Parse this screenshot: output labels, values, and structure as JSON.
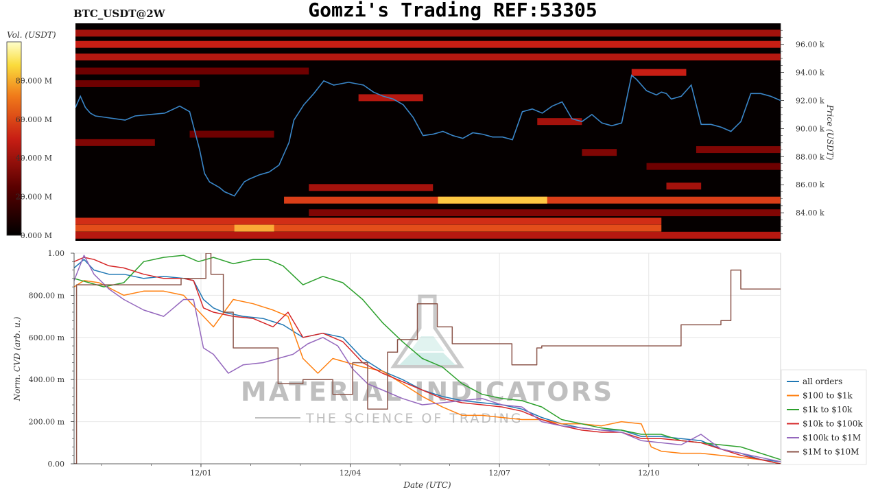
{
  "title": "Gomzi's Trading REF:53305",
  "pair_label": "BTC_USDT@2W",
  "watermark": {
    "main": "MATERIAL INDICATORS",
    "sub": "THE SCIENCE OF TRADING"
  },
  "colors": {
    "heat_low": "#000000",
    "heat_mid": "#c81e14",
    "heat_high": "#ffff99",
    "price_line": "#3a86c8",
    "grid": "#e6e6e6"
  },
  "chart_data": [
    {
      "type": "heatmap",
      "name": "orderbook-liquidity",
      "colorbar_label": "Vol. (USDT)",
      "colorbar_ticks": [
        "0.000 M",
        "20.000 M",
        "40.000 M",
        "60.000 M",
        "80.000 M"
      ],
      "colorbar_range": [
        0,
        100
      ],
      "y_label": "Price (USDT)",
      "y_ticks": [
        "84.00 k",
        "86.00 k",
        "88.00 k",
        "90.00 k",
        "92.00 k",
        "94.00 k",
        "96.00 k"
      ],
      "y_tick_values": [
        84,
        86,
        88,
        90,
        92,
        94,
        96
      ],
      "ylim": [
        82,
        97.5
      ],
      "xlim": [
        0,
        14.2
      ],
      "bands": [
        {
          "price": 96.8,
          "start": 0,
          "end": 14.2,
          "intensity": 0.45
        },
        {
          "price": 96.0,
          "start": 0,
          "end": 14.2,
          "intensity": 0.55
        },
        {
          "price": 95.1,
          "start": 0,
          "end": 14.2,
          "intensity": 0.5
        },
        {
          "price": 94.1,
          "start": 0,
          "end": 4.7,
          "intensity": 0.3
        },
        {
          "price": 93.2,
          "start": 0,
          "end": 2.5,
          "intensity": 0.3
        },
        {
          "price": 89.0,
          "start": 0,
          "end": 1.6,
          "intensity": 0.35
        },
        {
          "price": 85.8,
          "start": 4.7,
          "end": 7.2,
          "intensity": 0.45
        },
        {
          "price": 85.9,
          "start": 11.9,
          "end": 12.6,
          "intensity": 0.45
        },
        {
          "price": 84.9,
          "start": 4.2,
          "end": 14.2,
          "intensity": 0.65
        },
        {
          "price": 84.9,
          "start": 7.3,
          "end": 9.5,
          "intensity": 0.95
        },
        {
          "price": 84.0,
          "start": 4.7,
          "end": 14.2,
          "intensity": 0.35
        },
        {
          "price": 83.4,
          "start": 0,
          "end": 11.8,
          "intensity": 0.6
        },
        {
          "price": 82.9,
          "start": 0,
          "end": 11.8,
          "intensity": 0.7
        },
        {
          "price": 82.9,
          "start": 3.2,
          "end": 4.0,
          "intensity": 0.9
        },
        {
          "price": 82.4,
          "start": 0,
          "end": 14.2,
          "intensity": 0.5
        },
        {
          "price": 92.2,
          "start": 5.7,
          "end": 7.0,
          "intensity": 0.5
        },
        {
          "price": 90.5,
          "start": 9.3,
          "end": 10.2,
          "intensity": 0.45
        },
        {
          "price": 89.6,
          "start": 2.3,
          "end": 4.0,
          "intensity": 0.3
        },
        {
          "price": 88.3,
          "start": 10.2,
          "end": 10.9,
          "intensity": 0.35
        },
        {
          "price": 88.5,
          "start": 12.5,
          "end": 14.2,
          "intensity": 0.35
        },
        {
          "price": 87.3,
          "start": 11.5,
          "end": 14.2,
          "intensity": 0.3
        },
        {
          "price": 94.0,
          "start": 11.2,
          "end": 12.3,
          "intensity": 0.55
        }
      ],
      "price": {
        "x": [
          0,
          0.1,
          0.2,
          0.3,
          0.4,
          0.6,
          0.8,
          1.0,
          1.2,
          1.5,
          1.8,
          2.1,
          2.3,
          2.5,
          2.6,
          2.7,
          2.8,
          2.9,
          3.0,
          3.2,
          3.4,
          3.5,
          3.7,
          3.9,
          4.1,
          4.3,
          4.4,
          4.6,
          4.8,
          5.0,
          5.2,
          5.5,
          5.8,
          6.0,
          6.2,
          6.4,
          6.6,
          6.8,
          7.0,
          7.2,
          7.4,
          7.6,
          7.8,
          8.0,
          8.2,
          8.4,
          8.6,
          8.8,
          9.0,
          9.2,
          9.4,
          9.6,
          9.8,
          10.0,
          10.2,
          10.4,
          10.6,
          10.8,
          11.0,
          11.2,
          11.3,
          11.5,
          11.7,
          11.8,
          11.9,
          12.0,
          12.2,
          12.4,
          12.6,
          12.8,
          13.0,
          13.2,
          13.4,
          13.6,
          13.8,
          14.0,
          14.2
        ],
        "y": [
          91.5,
          92.3,
          91.5,
          91.1,
          90.9,
          90.8,
          90.7,
          90.6,
          90.9,
          91.0,
          91.1,
          91.6,
          91.2,
          88.5,
          86.8,
          86.2,
          86.0,
          85.8,
          85.5,
          85.2,
          86.2,
          86.4,
          86.7,
          86.9,
          87.4,
          89.0,
          90.6,
          91.7,
          92.5,
          93.4,
          93.1,
          93.3,
          93.1,
          92.6,
          92.3,
          92.1,
          91.7,
          90.8,
          89.5,
          89.6,
          89.8,
          89.5,
          89.3,
          89.7,
          89.6,
          89.4,
          89.4,
          89.2,
          91.2,
          91.4,
          91.1,
          91.6,
          91.9,
          90.7,
          90.5,
          91.0,
          90.4,
          90.2,
          90.4,
          93.8,
          93.5,
          92.7,
          92.4,
          92.6,
          92.5,
          92.1,
          92.3,
          93.1,
          90.3,
          90.3,
          90.1,
          89.8,
          90.5,
          92.5,
          92.5,
          92.3,
          92.0
        ]
      }
    },
    {
      "type": "line",
      "name": "normalized-cvd",
      "ylabel": "Norm. CVD (arb. u.)",
      "xlabel": "Date (UTC)",
      "ylim": [
        0,
        1
      ],
      "xlim": [
        0,
        14.2
      ],
      "y_ticks": [
        "0.00",
        "200.00 m",
        "400.00 m",
        "600.00 m",
        "800.00 m",
        "1.00"
      ],
      "y_tick_values": [
        0,
        0.2,
        0.4,
        0.6,
        0.8,
        1.0
      ],
      "x_ticks": [
        "12/01",
        "12/04",
        "12/07",
        "12/10"
      ],
      "x_tick_values": [
        2.55,
        5.55,
        8.55,
        11.55
      ],
      "series": [
        {
          "name": "all orders",
          "color": "#1f77b4",
          "x": [
            0,
            0.2,
            0.4,
            0.7,
            1.0,
            1.4,
            1.8,
            2.2,
            2.4,
            2.6,
            2.8,
            3.0,
            3.4,
            3.8,
            4.2,
            4.6,
            5.0,
            5.4,
            5.8,
            6.2,
            6.6,
            7.0,
            7.4,
            7.8,
            8.2,
            8.6,
            9.0,
            9.4,
            9.8,
            10.2,
            10.6,
            11.0,
            11.4,
            11.8,
            12.2,
            12.6,
            13.0,
            13.4,
            13.8,
            14.2
          ],
          "y": [
            0.93,
            0.97,
            0.92,
            0.9,
            0.9,
            0.88,
            0.89,
            0.88,
            0.87,
            0.78,
            0.74,
            0.72,
            0.7,
            0.69,
            0.66,
            0.6,
            0.62,
            0.6,
            0.5,
            0.44,
            0.4,
            0.35,
            0.32,
            0.3,
            0.29,
            0.28,
            0.26,
            0.22,
            0.19,
            0.17,
            0.16,
            0.16,
            0.13,
            0.13,
            0.12,
            0.11,
            0.07,
            0.05,
            0.02,
            0.01
          ]
        },
        {
          "name": "$100 to $1k",
          "color": "#ff7f0e",
          "x": [
            0,
            0.2,
            0.5,
            1.0,
            1.4,
            1.8,
            2.2,
            2.6,
            2.8,
            3.2,
            3.6,
            4.0,
            4.3,
            4.6,
            4.9,
            5.2,
            5.5,
            5.8,
            6.2,
            6.6,
            7.0,
            7.4,
            7.8,
            8.2,
            8.6,
            9.0,
            9.4,
            9.8,
            10.2,
            10.6,
            11.0,
            11.4,
            11.6,
            11.8,
            12.2,
            12.6,
            13.0,
            13.4,
            13.8,
            14.2
          ],
          "y": [
            0.84,
            0.87,
            0.86,
            0.8,
            0.82,
            0.82,
            0.8,
            0.7,
            0.65,
            0.78,
            0.76,
            0.73,
            0.7,
            0.5,
            0.43,
            0.5,
            0.48,
            0.46,
            0.44,
            0.38,
            0.32,
            0.27,
            0.23,
            0.23,
            0.22,
            0.21,
            0.21,
            0.19,
            0.19,
            0.18,
            0.2,
            0.19,
            0.08,
            0.06,
            0.05,
            0.05,
            0.04,
            0.03,
            0.02,
            0.0
          ]
        },
        {
          "name": "$1k to $10k",
          "color": "#2ca02c",
          "x": [
            0,
            0.3,
            0.6,
            1.0,
            1.4,
            1.8,
            2.2,
            2.5,
            2.8,
            3.2,
            3.6,
            3.9,
            4.2,
            4.6,
            5.0,
            5.4,
            5.8,
            6.2,
            6.6,
            7.0,
            7.4,
            7.8,
            8.2,
            8.6,
            9.0,
            9.4,
            9.8,
            10.2,
            10.6,
            11.0,
            11.4,
            11.8,
            12.2,
            12.6,
            13.0,
            13.4,
            13.8,
            14.2
          ],
          "y": [
            0.88,
            0.86,
            0.84,
            0.86,
            0.96,
            0.98,
            0.99,
            0.96,
            0.98,
            0.95,
            0.97,
            0.97,
            0.94,
            0.85,
            0.89,
            0.86,
            0.78,
            0.67,
            0.58,
            0.5,
            0.46,
            0.38,
            0.33,
            0.31,
            0.3,
            0.27,
            0.21,
            0.19,
            0.17,
            0.16,
            0.14,
            0.14,
            0.11,
            0.1,
            0.09,
            0.08,
            0.05,
            0.02
          ]
        },
        {
          "name": "$10k to $100k",
          "color": "#d62728",
          "x": [
            0,
            0.2,
            0.4,
            0.7,
            1.0,
            1.4,
            1.8,
            2.2,
            2.4,
            2.6,
            2.8,
            3.2,
            3.6,
            4.0,
            4.3,
            4.6,
            5.0,
            5.4,
            5.8,
            6.2,
            6.6,
            7.0,
            7.4,
            7.8,
            8.2,
            8.6,
            9.0,
            9.4,
            9.8,
            10.2,
            10.6,
            11.0,
            11.4,
            11.8,
            12.2,
            12.6,
            13.0,
            13.4,
            13.8,
            14.2
          ],
          "y": [
            0.96,
            0.98,
            0.97,
            0.94,
            0.93,
            0.9,
            0.88,
            0.88,
            0.87,
            0.74,
            0.72,
            0.7,
            0.69,
            0.65,
            0.72,
            0.6,
            0.62,
            0.58,
            0.48,
            0.43,
            0.39,
            0.35,
            0.31,
            0.29,
            0.28,
            0.27,
            0.25,
            0.21,
            0.18,
            0.16,
            0.15,
            0.15,
            0.12,
            0.12,
            0.11,
            0.1,
            0.07,
            0.04,
            0.02,
            0.0
          ]
        },
        {
          "name": "$100k to $1M",
          "color": "#9467bd",
          "x": [
            0,
            0.2,
            0.4,
            0.7,
            1.0,
            1.4,
            1.8,
            2.2,
            2.4,
            2.6,
            2.8,
            3.1,
            3.4,
            3.8,
            4.1,
            4.4,
            4.7,
            5.0,
            5.3,
            5.6,
            5.9,
            6.2,
            6.6,
            7.0,
            7.4,
            7.8,
            8.2,
            8.6,
            9.0,
            9.4,
            9.8,
            10.2,
            10.6,
            11.0,
            11.4,
            11.8,
            12.2,
            12.6,
            13.0,
            13.4,
            13.8,
            14.2
          ],
          "y": [
            0.87,
            0.99,
            0.9,
            0.83,
            0.78,
            0.73,
            0.7,
            0.78,
            0.78,
            0.55,
            0.52,
            0.43,
            0.47,
            0.48,
            0.5,
            0.52,
            0.57,
            0.6,
            0.56,
            0.45,
            0.38,
            0.35,
            0.31,
            0.28,
            0.29,
            0.3,
            0.31,
            0.28,
            0.27,
            0.2,
            0.18,
            0.17,
            0.16,
            0.15,
            0.11,
            0.1,
            0.09,
            0.14,
            0.07,
            0.05,
            0.03,
            0.01
          ]
        },
        {
          "name": "$1M to $10M",
          "color": "#8c564b",
          "step": true,
          "x": [
            0,
            0.05,
            0.05,
            2.15,
            2.15,
            2.65,
            2.65,
            2.75,
            2.75,
            3.0,
            3.0,
            3.2,
            3.2,
            4.1,
            4.1,
            4.6,
            4.6,
            5.2,
            5.2,
            5.6,
            5.6,
            5.9,
            5.9,
            6.3,
            6.3,
            6.5,
            6.5,
            6.9,
            6.9,
            7.3,
            7.3,
            7.6,
            7.6,
            8.1,
            8.1,
            8.8,
            8.8,
            9.3,
            9.3,
            9.4,
            9.4,
            10.5,
            10.5,
            11.2,
            11.2,
            12.2,
            12.2,
            12.9,
            12.9,
            13.0,
            13.0,
            13.2,
            13.2,
            13.4,
            13.4,
            14.2
          ],
          "y": [
            0.0,
            0.0,
            0.85,
            0.85,
            0.88,
            0.88,
            1.0,
            1.0,
            0.9,
            0.9,
            0.72,
            0.72,
            0.55,
            0.55,
            0.38,
            0.38,
            0.4,
            0.4,
            0.33,
            0.33,
            0.48,
            0.48,
            0.26,
            0.26,
            0.53,
            0.53,
            0.59,
            0.59,
            0.76,
            0.76,
            0.65,
            0.65,
            0.57,
            0.57,
            0.57,
            0.57,
            0.47,
            0.47,
            0.55,
            0.55,
            0.56,
            0.56,
            0.56,
            0.56,
            0.56,
            0.56,
            0.66,
            0.66,
            0.66,
            0.66,
            0.68,
            0.68,
            0.92,
            0.92,
            0.83,
            0.83
          ]
        }
      ]
    }
  ]
}
